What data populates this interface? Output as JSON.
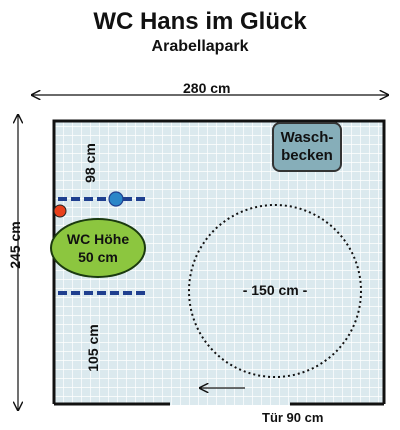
{
  "title": "WC Hans im Glück",
  "subtitle": "Arabellapark",
  "dimensions": {
    "width": "280 cm",
    "depth": "245 cm",
    "upper_distance": "98 cm",
    "lower_distance": "105 cm"
  },
  "fixtures": {
    "washbasin_line1": "Wasch-",
    "washbasin_line2": "becken",
    "wc_line1": "WC Höhe",
    "wc_line2": "50 cm",
    "turning_circle": "- 150 cm -"
  },
  "door": {
    "label": "Tür 90 cm"
  },
  "colors": {
    "floor": "#dbe9ee",
    "grid": "#ffffff",
    "washbasin": "#86aeb9",
    "wc": "#8cc63f",
    "grab_bar": "#1f3f8f",
    "flush_button": "#e8401c",
    "handle": "#2a86c8"
  }
}
